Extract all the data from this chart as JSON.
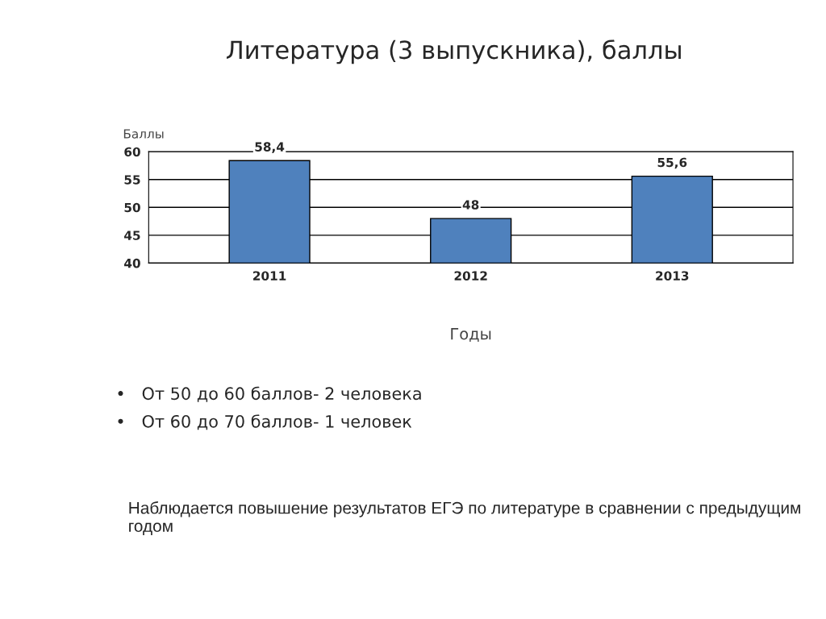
{
  "chart_data": {
    "type": "bar",
    "title": "Литература (3 выпускника), баллы",
    "categories": [
      "2011",
      "2012",
      "2013"
    ],
    "values": [
      58.4,
      48,
      55.6
    ],
    "value_labels": [
      "58,4",
      "48",
      "55,6"
    ],
    "color": "#4f81bd",
    "ylabel": "Баллы",
    "xlabel": "Годы",
    "ylim": [
      40,
      60
    ],
    "yticks": [
      40,
      45,
      50,
      55,
      60
    ],
    "grid": "y",
    "annotations": [
      "•   От 50 до 60 баллов- 2 человека",
      "•   От 60 до 70 баллов- 1 человек",
      "Наблюдается повышение результатов ЕГЭ по литературе в сравнении с предыдущим годом"
    ]
  }
}
